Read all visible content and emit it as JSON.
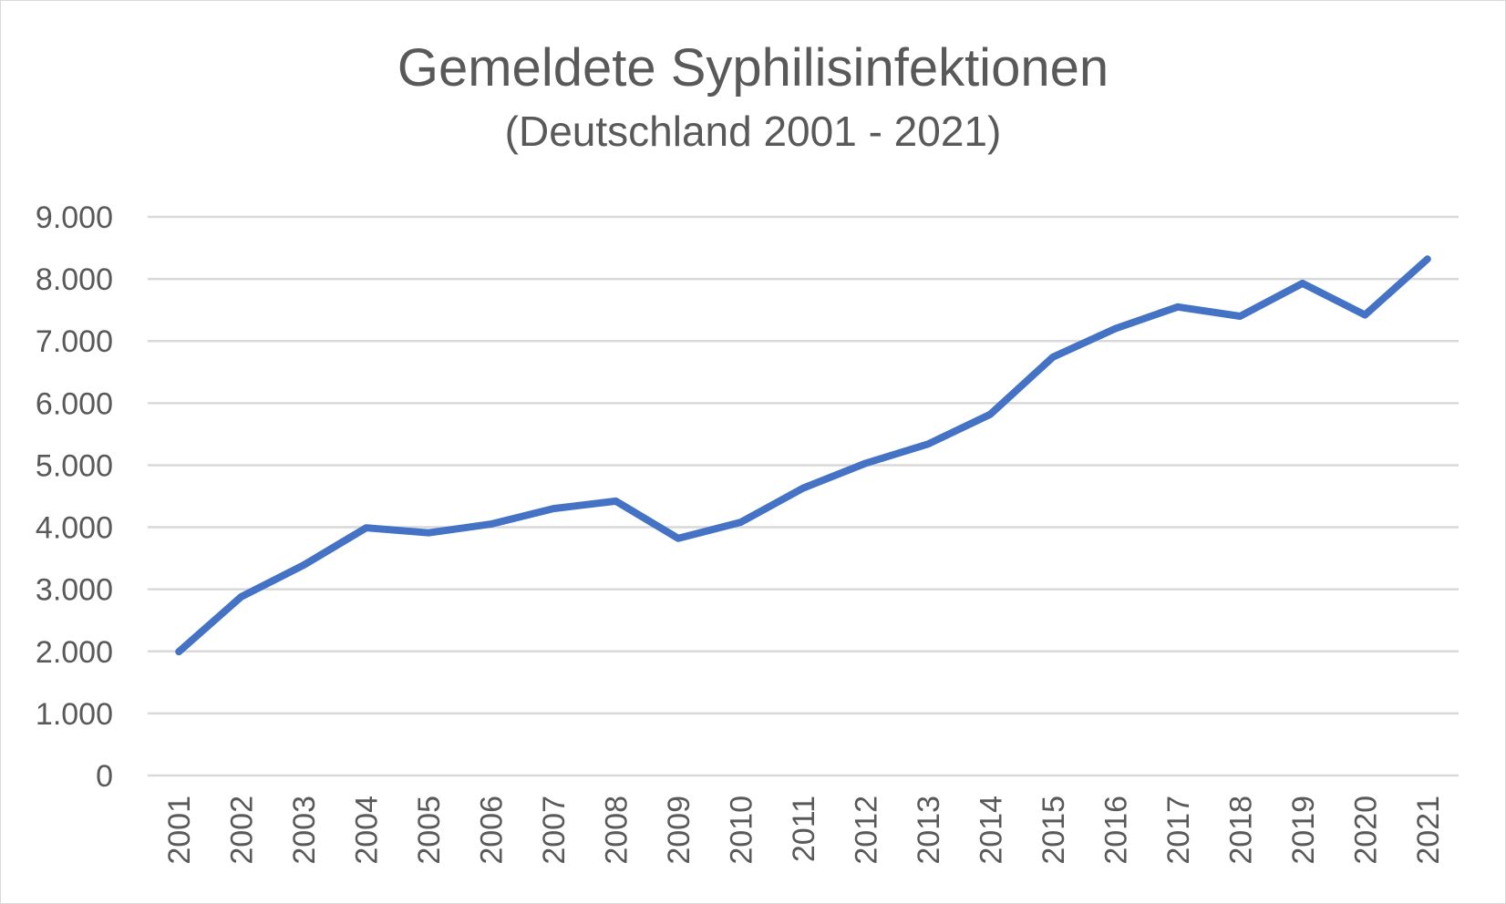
{
  "chart_data": {
    "type": "line",
    "title": "Gemeldete Syphilisinfektionen",
    "subtitle": "(Deutschland 2001 - 2021)",
    "xlabel": "",
    "ylabel": "",
    "categories": [
      "2001",
      "2002",
      "2003",
      "2004",
      "2005",
      "2006",
      "2007",
      "2008",
      "2009",
      "2010",
      "2011",
      "2012",
      "2013",
      "2014",
      "2015",
      "2016",
      "2017",
      "2018",
      "2019",
      "2020",
      "2021"
    ],
    "series": [
      {
        "values": [
          1995,
          2880,
          3390,
          3990,
          3910,
          4050,
          4300,
          4420,
          3820,
          4080,
          4630,
          5030,
          5340,
          5820,
          6740,
          7200,
          7550,
          7400,
          7930,
          7420,
          8320
        ],
        "color": "#4472c4"
      }
    ],
    "ylim": [
      0,
      9000
    ],
    "yticks": [
      0,
      1000,
      2000,
      3000,
      4000,
      5000,
      6000,
      7000,
      8000,
      9000
    ],
    "ytick_labels": [
      "0",
      "1.000",
      "2.000",
      "3.000",
      "4.000",
      "5.000",
      "6.000",
      "7.000",
      "8.000",
      "9.000"
    ],
    "grid": true,
    "legend": "none"
  }
}
